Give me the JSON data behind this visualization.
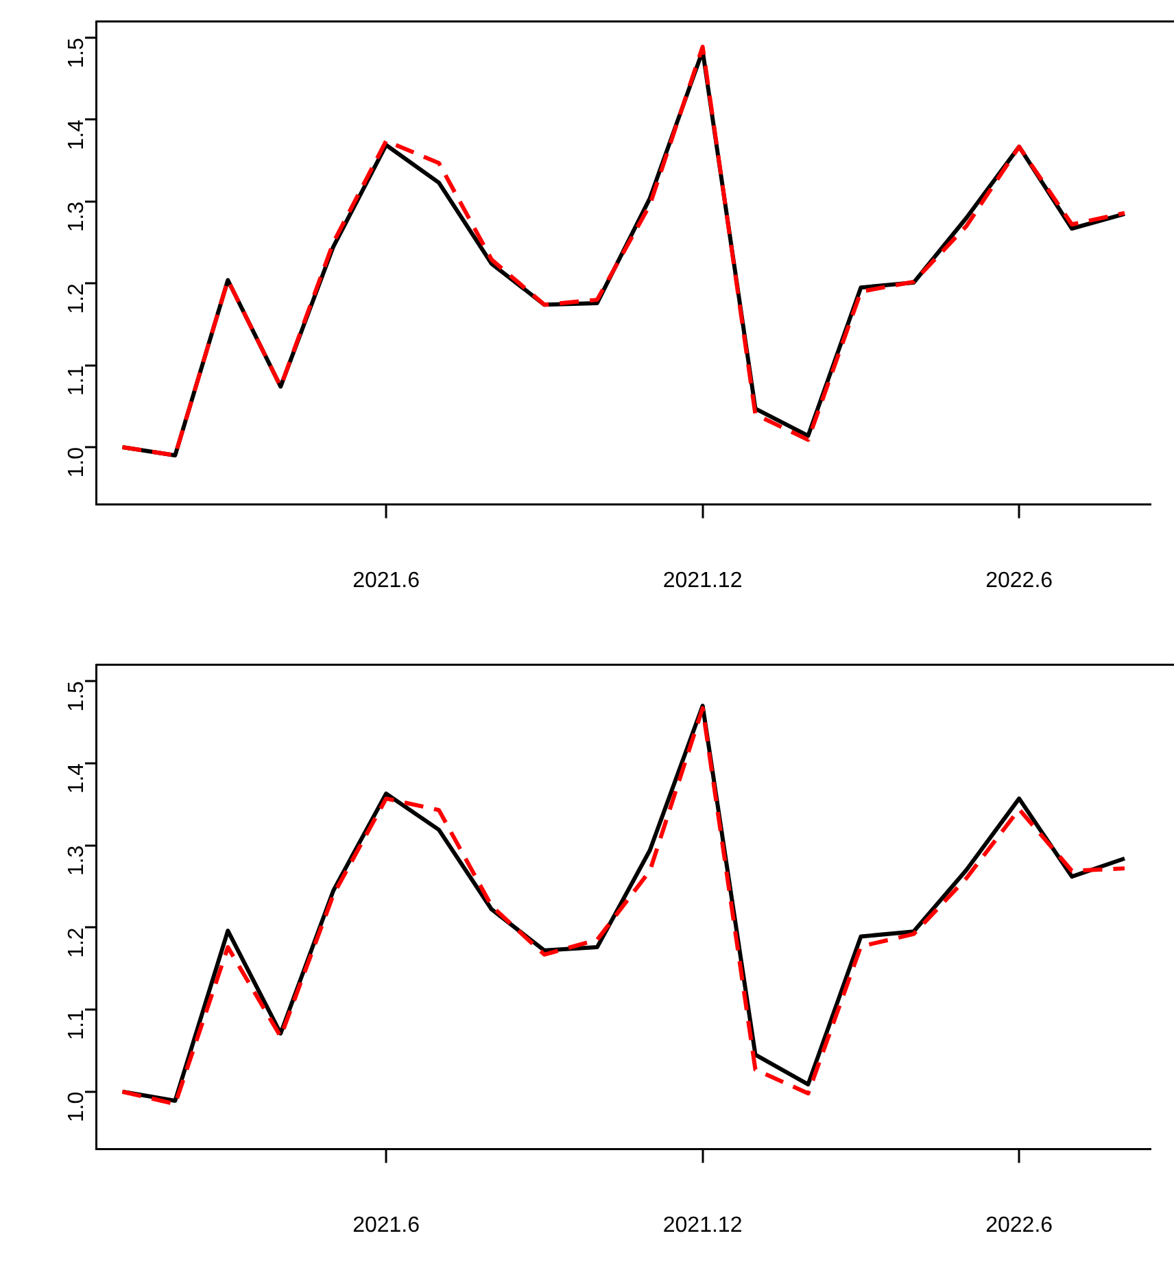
{
  "chart_data": [
    {
      "type": "line",
      "categories": [
        null,
        null,
        null,
        null,
        null,
        "2021.6",
        null,
        null,
        null,
        null,
        null,
        "2021.12",
        null,
        null,
        null,
        null,
        null,
        "2022.6",
        null,
        null
      ],
      "series": [
        {
          "color": "#000000",
          "line_style": "solid",
          "values": [
            1.0,
            0.99,
            1.204,
            1.074,
            1.245,
            1.369,
            1.323,
            1.224,
            1.174,
            1.176,
            1.304,
            1.484,
            1.047,
            1.014,
            1.195,
            1.201,
            1.28,
            1.367,
            1.267,
            1.285
          ]
        },
        {
          "color": "#ff0000",
          "line_style": "dashed",
          "values": [
            1.0,
            0.99,
            1.204,
            1.074,
            1.25,
            1.374,
            1.347,
            1.229,
            1.174,
            1.18,
            1.296,
            1.489,
            1.04,
            1.009,
            1.19,
            1.202,
            1.27,
            1.367,
            1.272,
            1.286
          ]
        }
      ],
      "ylim": [
        0.93,
        1.52
      ],
      "yticks": [
        {
          "value": 1,
          "label": "1.0"
        },
        1.1,
        1.2,
        1.3,
        1.4,
        1.5
      ],
      "grid": false,
      "legend": false,
      "marker": "none"
    },
    {
      "type": "line",
      "categories": [
        null,
        null,
        null,
        null,
        null,
        "2021.6",
        null,
        null,
        null,
        null,
        null,
        "2021.12",
        null,
        null,
        null,
        null,
        null,
        "2022.6",
        null,
        null
      ],
      "series": [
        {
          "color": "#000000",
          "line_style": "solid",
          "values": [
            1.0,
            0.989,
            1.196,
            1.071,
            1.245,
            1.363,
            1.319,
            1.222,
            1.172,
            1.176,
            1.294,
            1.47,
            1.045,
            1.009,
            1.189,
            1.195,
            1.27,
            1.357,
            1.262,
            1.284
          ]
        },
        {
          "color": "#ff0000",
          "line_style": "dashed",
          "values": [
            1.0,
            0.985,
            1.176,
            1.067,
            1.24,
            1.357,
            1.343,
            1.226,
            1.167,
            1.185,
            1.269,
            1.467,
            1.027,
            0.998,
            1.177,
            1.192,
            1.26,
            1.344,
            1.269,
            1.272
          ]
        }
      ],
      "ylim": [
        0.93,
        1.52
      ],
      "yticks": [
        {
          "value": 1,
          "label": "1.0"
        },
        1.1,
        1.2,
        1.3,
        1.4,
        1.5
      ],
      "grid": false,
      "legend": false,
      "marker": "none"
    }
  ]
}
